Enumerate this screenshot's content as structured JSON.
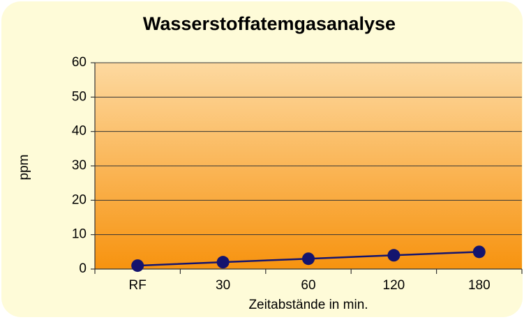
{
  "chart_data": {
    "type": "line",
    "title": "Wasserstoffatemgasanalyse",
    "x_label": "Zeitabstände in min.",
    "y_label": "ppm",
    "categories": [
      "RF",
      "30",
      "60",
      "120",
      "180"
    ],
    "series": [
      {
        "name": "ppm",
        "color": "#14146e",
        "values": [
          1,
          2,
          3,
          4,
          5
        ]
      }
    ],
    "ylim": [
      0,
      60
    ],
    "yticks": [
      0,
      10,
      20,
      30,
      40,
      50,
      60
    ],
    "grid": true
  }
}
